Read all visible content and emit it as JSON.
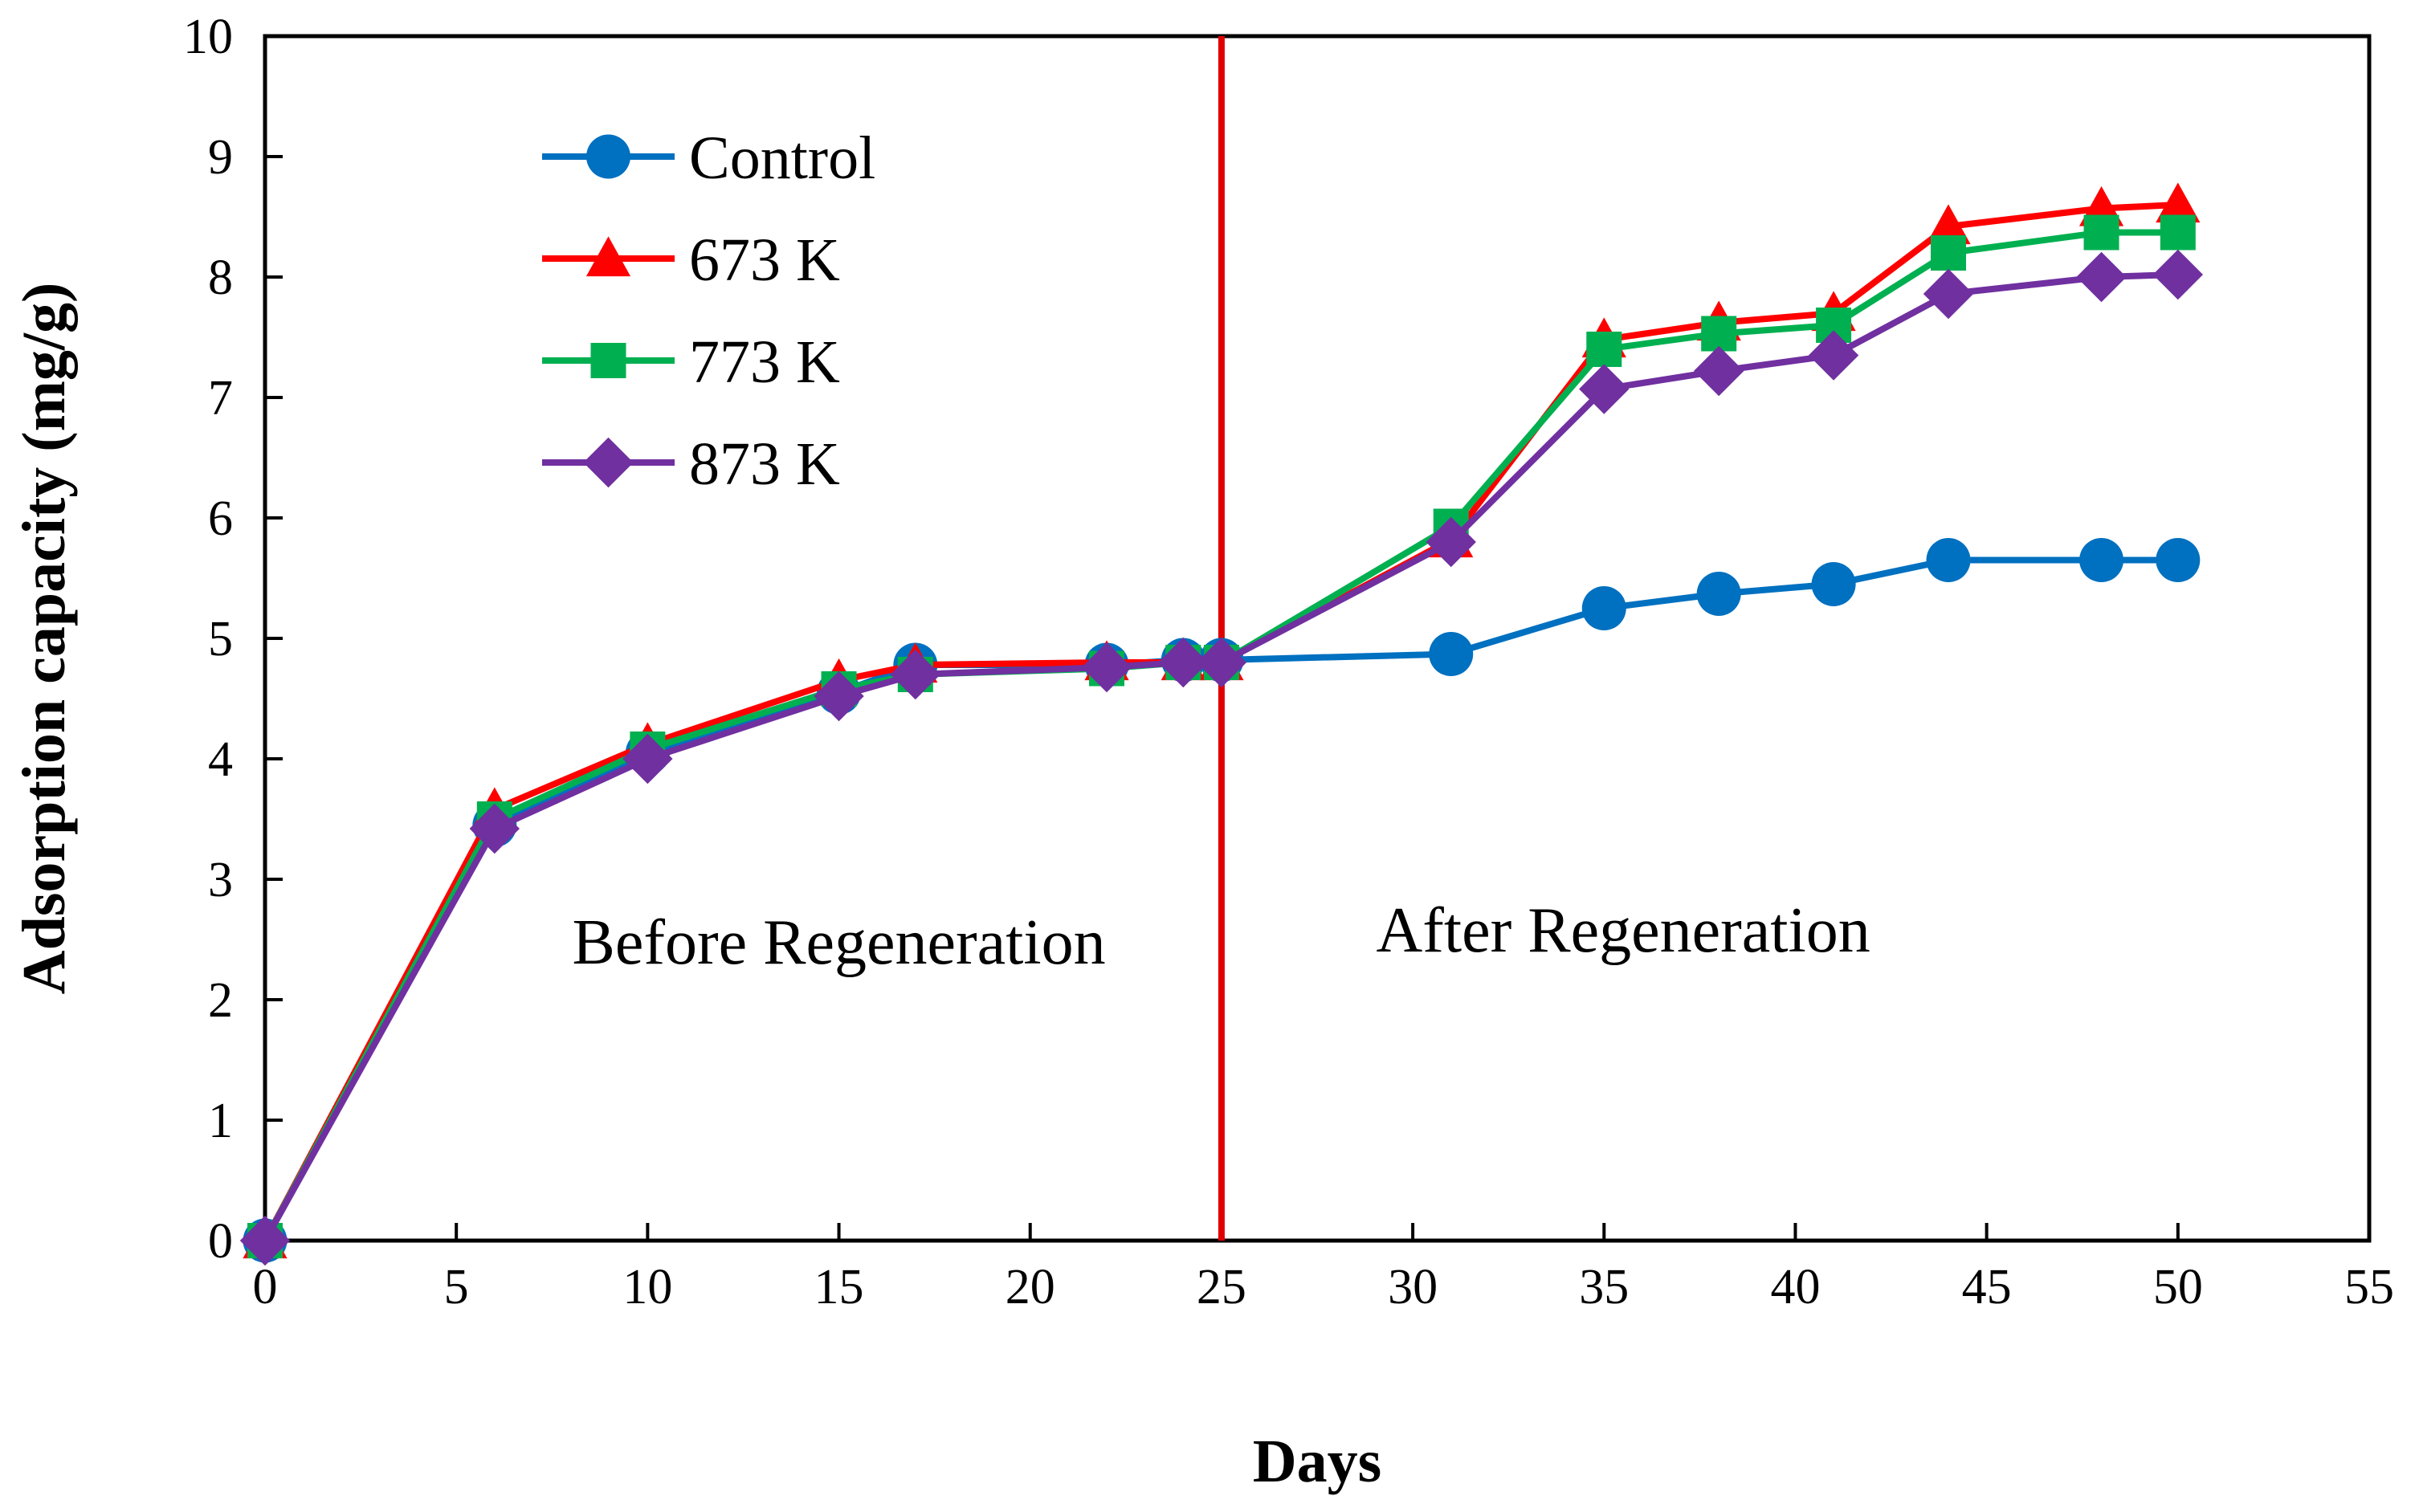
{
  "chart_data": {
    "type": "line",
    "title": "",
    "xlabel": "Days",
    "ylabel": "Adsorption capacity (mg/g)",
    "xlim": [
      0,
      55
    ],
    "ylim": [
      0,
      10
    ],
    "xticks": [
      0,
      5,
      10,
      15,
      20,
      25,
      30,
      35,
      40,
      45,
      50,
      55
    ],
    "yticks": [
      0,
      1,
      2,
      3,
      4,
      5,
      6,
      7,
      8,
      9,
      10
    ],
    "grid": false,
    "legend_position": "top-left",
    "series": [
      {
        "name": "Control",
        "color": "#0070C0",
        "marker": "circle",
        "x": [
          0,
          6,
          10,
          15,
          17,
          22,
          24,
          25,
          31,
          35,
          38,
          41,
          44,
          48,
          50
        ],
        "y": [
          0,
          3.45,
          4.05,
          4.55,
          4.78,
          4.78,
          4.82,
          4.82,
          4.87,
          5.25,
          5.37,
          5.45,
          5.65,
          5.65,
          5.65
        ]
      },
      {
        "name": "673 K",
        "color": "#FF0000",
        "marker": "triangle",
        "x": [
          0,
          6,
          10,
          15,
          17,
          22,
          24,
          25,
          31,
          35,
          38,
          41,
          44,
          48,
          50
        ],
        "y": [
          0,
          3.58,
          4.12,
          4.65,
          4.78,
          4.8,
          4.8,
          4.8,
          5.82,
          7.48,
          7.62,
          7.7,
          8.42,
          8.57,
          8.6
        ]
      },
      {
        "name": "773 K",
        "color": "#00B050",
        "marker": "square",
        "x": [
          0,
          6,
          10,
          15,
          17,
          22,
          24,
          25,
          31,
          35,
          38,
          41,
          44,
          48,
          50
        ],
        "y": [
          0,
          3.5,
          4.08,
          4.58,
          4.7,
          4.75,
          4.8,
          4.8,
          5.93,
          7.4,
          7.53,
          7.6,
          8.2,
          8.37,
          8.37
        ]
      },
      {
        "name": "873 K",
        "color": "#7030A0",
        "marker": "diamond",
        "x": [
          0,
          6,
          10,
          15,
          17,
          22,
          24,
          25,
          31,
          35,
          38,
          41,
          44,
          48,
          50
        ],
        "y": [
          0,
          3.42,
          4.0,
          4.52,
          4.7,
          4.76,
          4.8,
          4.8,
          5.8,
          7.07,
          7.22,
          7.35,
          7.86,
          8.0,
          8.02
        ]
      }
    ],
    "reference_line": {
      "x": 25,
      "color": "#E00000"
    },
    "annotations": [
      {
        "text": "Before Regeneration",
        "x": 15,
        "y": 2.3
      },
      {
        "text": "After Regeneration",
        "x": 35.5,
        "y": 2.4
      }
    ]
  }
}
